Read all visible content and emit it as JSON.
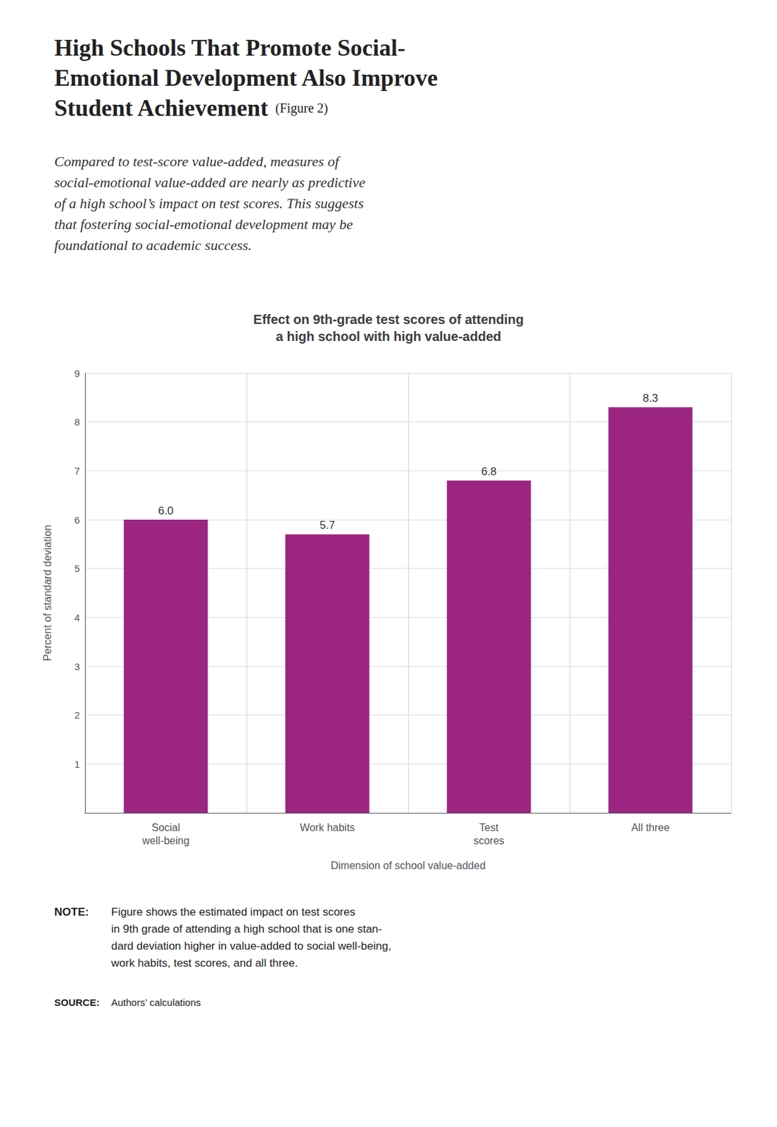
{
  "chart_data": {
    "type": "bar",
    "title": "High Schools That Promote Social-\nEmotional Development Also Improve\nStudent Achievement",
    "title_label": "(Figure 2)",
    "subtitle": "Compared to test-score value-added, measures of\nsocial-emotional value-added are nearly as predictive\nof a high school’s impact on test scores. This suggests\nthat fostering social-emotional development may be\nfoundational to academic success.",
    "chart_title": "Effect on 9th-grade test scores of attending\na high school with high value-added",
    "categories": [
      "Social\nwell-being",
      "Work habits",
      "Test\nscores",
      "All three"
    ],
    "values": [
      6.0,
      5.7,
      6.8,
      8.3
    ],
    "value_labels": [
      "6.0",
      "5.7",
      "6.8",
      "8.3"
    ],
    "data_labels": true,
    "color": "#9B2580",
    "ylabel": "Percent of standard deviation",
    "xlabel": "Dimension of school value-added",
    "ylim": [
      0,
      9
    ],
    "yticks": [
      1,
      2,
      3,
      4,
      5,
      6,
      7,
      8,
      9
    ],
    "grid": true,
    "note_label": "NOTE:",
    "note": "Figure shows the estimated impact on test scores\nin 9th grade of attending a high school that is one stan-\ndard deviation higher in value-added to social well-being,\nwork habits, test scores, and all three.",
    "source_label": "SOURCE:",
    "source": "Authors’ calculations"
  }
}
